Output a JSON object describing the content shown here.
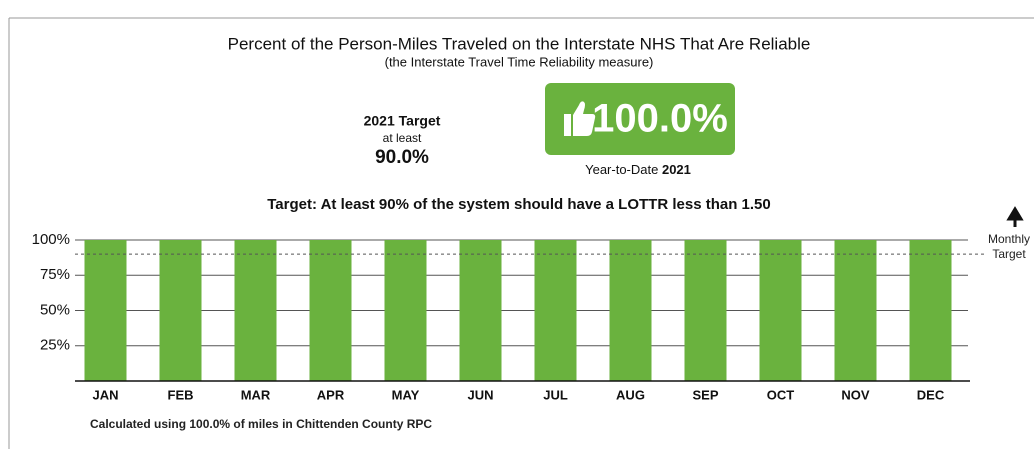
{
  "header": {
    "title": "Percent of the Person-Miles Traveled on the Interstate NHS That Are Reliable",
    "subtitle": "(the Interstate Travel Time Reliability measure)"
  },
  "target_box": {
    "heading": "2021 Target",
    "qualifier": "at least",
    "value": "90.0%"
  },
  "badge": {
    "value": "100.0%",
    "caption": "Year-to-Date",
    "year": "2021"
  },
  "chart_data": {
    "type": "bar",
    "title": "Target: At least 90% of the system should have a LOTTR less than 1.50",
    "categories": [
      "JAN",
      "FEB",
      "MAR",
      "APR",
      "MAY",
      "JUN",
      "JUL",
      "AUG",
      "SEP",
      "OCT",
      "NOV",
      "DEC"
    ],
    "values": [
      100,
      100,
      100,
      100,
      100,
      100,
      100,
      100,
      100,
      100,
      100,
      100
    ],
    "color": "#6ab23e",
    "ylim": [
      0,
      100
    ],
    "yticks": [
      {
        "value": 25,
        "label": "25%"
      },
      {
        "value": 50,
        "label": "50%"
      },
      {
        "value": 75,
        "label": "75%"
      },
      {
        "value": 100,
        "label": "100%"
      }
    ],
    "grid": true,
    "target": 90,
    "target_label": "Monthly Target"
  },
  "footnote": "Calculated using 100.0% of miles in Chittenden County RPC"
}
